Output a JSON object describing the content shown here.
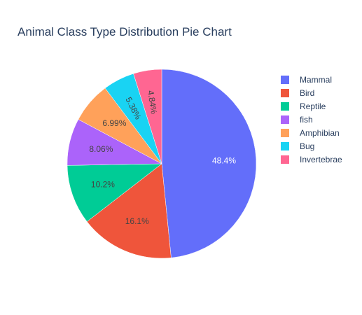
{
  "chart_data": {
    "type": "pie",
    "title": "Animal Class Type Distribution Pie Chart",
    "legend_position": "top-right",
    "sort": "descending",
    "direction": "clockwise",
    "start": "12 o'clock",
    "slices": [
      {
        "name": "Mammal",
        "value": 48.4,
        "label": "48.4%",
        "color": "#636efa",
        "label_color": "#ffffff"
      },
      {
        "name": "Bird",
        "value": 16.1,
        "label": "16.1%",
        "color": "#EF553B",
        "label_color": "#444444"
      },
      {
        "name": "Reptile",
        "value": 10.2,
        "label": "10.2%",
        "color": "#00cc96",
        "label_color": "#444444"
      },
      {
        "name": "fish",
        "value": 8.06,
        "label": "8.06%",
        "color": "#ab63fa",
        "label_color": "#444444"
      },
      {
        "name": "Amphibian",
        "value": 6.99,
        "label": "6.99%",
        "color": "#FFA15A",
        "label_color": "#444444"
      },
      {
        "name": "Bug",
        "value": 5.38,
        "label": "5.38%",
        "color": "#19d3f3",
        "label_color": "#444444"
      },
      {
        "name": "Invertebrae",
        "value": 4.84,
        "label": "4.84%",
        "color": "#FF6692",
        "label_color": "#444444"
      }
    ]
  }
}
